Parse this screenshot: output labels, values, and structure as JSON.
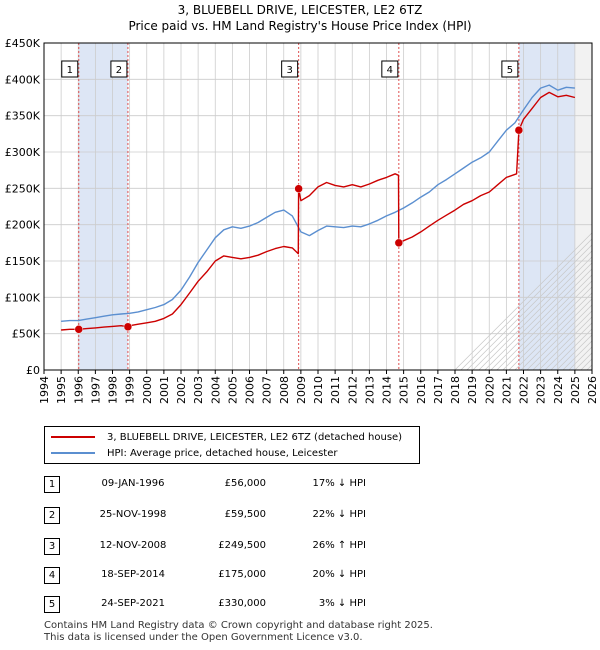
{
  "chart_data": {
    "type": "line",
    "title": "3, BLUEBELL DRIVE, LEICESTER, LE2 6TZ",
    "subtitle": "Price paid vs. HM Land Registry's House Price Index (HPI)",
    "xlabel": "",
    "ylabel": "",
    "xlim": [
      1994,
      2026
    ],
    "ylim": [
      0,
      450000
    ],
    "x_ticks": [
      1994,
      1995,
      1996,
      1997,
      1998,
      1999,
      2000,
      2001,
      2002,
      2003,
      2004,
      2005,
      2006,
      2007,
      2008,
      2009,
      2010,
      2011,
      2012,
      2013,
      2014,
      2015,
      2016,
      2017,
      2018,
      2019,
      2020,
      2021,
      2022,
      2023,
      2024,
      2025,
      2026
    ],
    "y_ticks": [
      0,
      50000,
      100000,
      150000,
      200000,
      250000,
      300000,
      350000,
      400000,
      450000
    ],
    "y_tick_labels": [
      "£0",
      "£50K",
      "£100K",
      "£150K",
      "£200K",
      "£250K",
      "£300K",
      "£350K",
      "£400K",
      "£450K"
    ],
    "grid": true,
    "data_range_end": 2025.0,
    "series": [
      {
        "name": "3, BLUEBELL DRIVE, LEICESTER, LE2 6TZ (detached house)",
        "color": "#cc0000",
        "points": [
          [
            1995.0,
            55000
          ],
          [
            1995.5,
            56000
          ],
          [
            1996.03,
            56000
          ],
          [
            1996.5,
            57000
          ],
          [
            1997.0,
            58000
          ],
          [
            1997.5,
            59000
          ],
          [
            1998.0,
            60000
          ],
          [
            1998.5,
            61000
          ],
          [
            1998.9,
            59500
          ],
          [
            1999.0,
            61000
          ],
          [
            1999.5,
            63000
          ],
          [
            2000.0,
            65000
          ],
          [
            2000.5,
            67000
          ],
          [
            2001.0,
            71000
          ],
          [
            2001.5,
            77000
          ],
          [
            2002.0,
            90000
          ],
          [
            2002.5,
            106000
          ],
          [
            2003.0,
            122000
          ],
          [
            2003.5,
            135000
          ],
          [
            2004.0,
            150000
          ],
          [
            2004.5,
            157000
          ],
          [
            2005.0,
            155000
          ],
          [
            2005.5,
            153000
          ],
          [
            2006.0,
            155000
          ],
          [
            2006.5,
            158000
          ],
          [
            2007.0,
            163000
          ],
          [
            2007.5,
            167000
          ],
          [
            2008.0,
            170000
          ],
          [
            2008.5,
            168000
          ],
          [
            2008.85,
            160000
          ],
          [
            2008.87,
            249500
          ],
          [
            2009.0,
            233000
          ],
          [
            2009.5,
            240000
          ],
          [
            2010.0,
            252000
          ],
          [
            2010.5,
            258000
          ],
          [
            2011.0,
            254000
          ],
          [
            2011.5,
            252000
          ],
          [
            2012.0,
            255000
          ],
          [
            2012.5,
            252000
          ],
          [
            2013.0,
            256000
          ],
          [
            2013.5,
            261000
          ],
          [
            2014.0,
            265000
          ],
          [
            2014.5,
            270000
          ],
          [
            2014.7,
            268000
          ],
          [
            2014.72,
            175000
          ],
          [
            2015.0,
            178000
          ],
          [
            2015.5,
            183000
          ],
          [
            2016.0,
            190000
          ],
          [
            2016.5,
            198000
          ],
          [
            2017.0,
            206000
          ],
          [
            2017.5,
            213000
          ],
          [
            2018.0,
            220000
          ],
          [
            2018.5,
            228000
          ],
          [
            2019.0,
            233000
          ],
          [
            2019.5,
            240000
          ],
          [
            2020.0,
            245000
          ],
          [
            2020.5,
            255000
          ],
          [
            2021.0,
            265000
          ],
          [
            2021.6,
            270000
          ],
          [
            2021.73,
            330000
          ],
          [
            2022.0,
            345000
          ],
          [
            2022.5,
            360000
          ],
          [
            2023.0,
            375000
          ],
          [
            2023.5,
            382000
          ],
          [
            2024.0,
            376000
          ],
          [
            2024.5,
            378000
          ],
          [
            2025.0,
            375000
          ]
        ]
      },
      {
        "name": "HPI: Average price, detached house, Leicester",
        "color": "#5b8fd0",
        "points": [
          [
            1995.0,
            67000
          ],
          [
            1995.5,
            68000
          ],
          [
            1996.0,
            68000
          ],
          [
            1996.5,
            70000
          ],
          [
            1997.0,
            72000
          ],
          [
            1997.5,
            74000
          ],
          [
            1998.0,
            76000
          ],
          [
            1998.5,
            77000
          ],
          [
            1999.0,
            78000
          ],
          [
            1999.5,
            80000
          ],
          [
            2000.0,
            83000
          ],
          [
            2000.5,
            86000
          ],
          [
            2001.0,
            90000
          ],
          [
            2001.5,
            97000
          ],
          [
            2002.0,
            110000
          ],
          [
            2002.5,
            128000
          ],
          [
            2003.0,
            148000
          ],
          [
            2003.5,
            165000
          ],
          [
            2004.0,
            182000
          ],
          [
            2004.5,
            193000
          ],
          [
            2005.0,
            197000
          ],
          [
            2005.5,
            195000
          ],
          [
            2006.0,
            198000
          ],
          [
            2006.5,
            203000
          ],
          [
            2007.0,
            210000
          ],
          [
            2007.5,
            217000
          ],
          [
            2008.0,
            220000
          ],
          [
            2008.5,
            212000
          ],
          [
            2009.0,
            190000
          ],
          [
            2009.5,
            185000
          ],
          [
            2010.0,
            192000
          ],
          [
            2010.5,
            198000
          ],
          [
            2011.0,
            197000
          ],
          [
            2011.5,
            196000
          ],
          [
            2012.0,
            198000
          ],
          [
            2012.5,
            197000
          ],
          [
            2013.0,
            201000
          ],
          [
            2013.5,
            206000
          ],
          [
            2014.0,
            212000
          ],
          [
            2014.5,
            217000
          ],
          [
            2015.0,
            223000
          ],
          [
            2015.5,
            230000
          ],
          [
            2016.0,
            238000
          ],
          [
            2016.5,
            245000
          ],
          [
            2017.0,
            255000
          ],
          [
            2017.5,
            262000
          ],
          [
            2018.0,
            270000
          ],
          [
            2018.5,
            278000
          ],
          [
            2019.0,
            286000
          ],
          [
            2019.5,
            292000
          ],
          [
            2020.0,
            300000
          ],
          [
            2020.5,
            315000
          ],
          [
            2021.0,
            330000
          ],
          [
            2021.5,
            340000
          ],
          [
            2022.0,
            358000
          ],
          [
            2022.5,
            375000
          ],
          [
            2023.0,
            388000
          ],
          [
            2023.5,
            392000
          ],
          [
            2024.0,
            385000
          ],
          [
            2024.5,
            389000
          ],
          [
            2025.0,
            388000
          ]
        ]
      }
    ],
    "transactions": [
      {
        "num": "1",
        "year": 1996.03,
        "price": 56000,
        "date": "09-JAN-1996",
        "price_label": "£56,000",
        "delta": "17% ↓ HPI"
      },
      {
        "num": "2",
        "year": 1998.9,
        "price": 59500,
        "date": "25-NOV-1998",
        "price_label": "£59,500",
        "delta": "22% ↓ HPI"
      },
      {
        "num": "3",
        "year": 2008.87,
        "price": 249500,
        "date": "12-NOV-2008",
        "price_label": "£249,500",
        "delta": "26% ↑ HPI"
      },
      {
        "num": "4",
        "year": 2014.72,
        "price": 175000,
        "date": "18-SEP-2014",
        "price_label": "£175,000",
        "delta": "20% ↓ HPI"
      },
      {
        "num": "5",
        "year": 2021.73,
        "price": 330000,
        "date": "24-SEP-2021",
        "price_label": "£330,000",
        "delta": "3% ↓ HPI"
      }
    ],
    "shaded_spans": [
      [
        1996.03,
        1998.9
      ],
      [
        2021.73,
        2025.0
      ]
    ],
    "legend_position": "below-left"
  },
  "legend": {
    "property_label": "3, BLUEBELL DRIVE, LEICESTER, LE2 6TZ (detached house)",
    "hpi_label": "HPI: Average price, detached house, Leicester"
  },
  "footer": {
    "line1": "Contains HM Land Registry data © Crown copyright and database right 2025.",
    "line2": "This data is licensed under the Open Government Licence v3.0."
  },
  "colors": {
    "property_line": "#cc0000",
    "hpi_line": "#5b8fd0",
    "shade": "#dde6f5",
    "grid": "#cccccc"
  }
}
